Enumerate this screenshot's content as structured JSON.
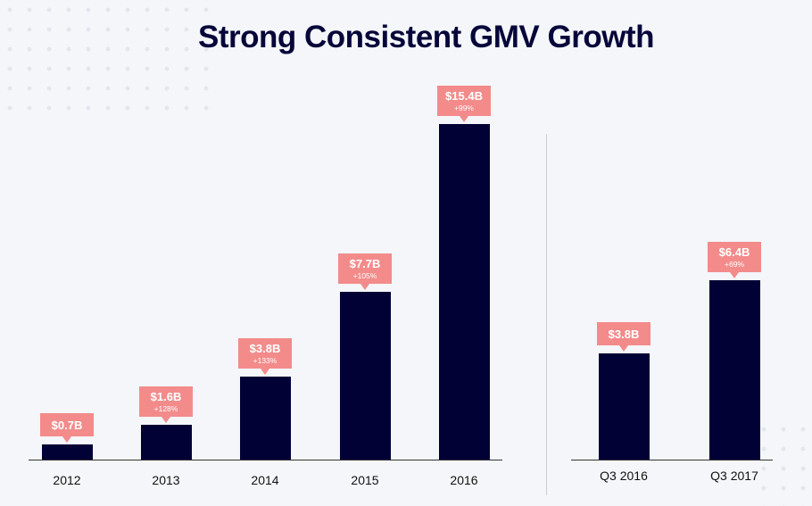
{
  "title": "Strong Consistent GMV Growth",
  "colors": {
    "bar": "#020135",
    "callout": "#f38b8b",
    "title": "#06063a",
    "background": "#f4f6f9"
  },
  "chart_data": [
    {
      "type": "bar",
      "title": "",
      "categories": [
        "2012",
        "2013",
        "2014",
        "2015",
        "2016"
      ],
      "values": [
        0.7,
        1.6,
        3.8,
        7.7,
        15.4
      ],
      "data_labels": [
        "$0.7B",
        "$1.6B",
        "$3.8B",
        "$7.7B",
        "$15.4B"
      ],
      "growth_labels": [
        "",
        "+128%",
        "+133%",
        "+105%",
        "+99%"
      ],
      "unit": "$B",
      "grid": false
    },
    {
      "type": "bar",
      "title": "",
      "categories": [
        "Q3 2016",
        "Q3 2017"
      ],
      "values": [
        3.8,
        6.4
      ],
      "data_labels": [
        "$3.8B",
        "$6.4B"
      ],
      "growth_labels": [
        "",
        "+69%"
      ],
      "unit": "$B",
      "grid": false
    }
  ]
}
